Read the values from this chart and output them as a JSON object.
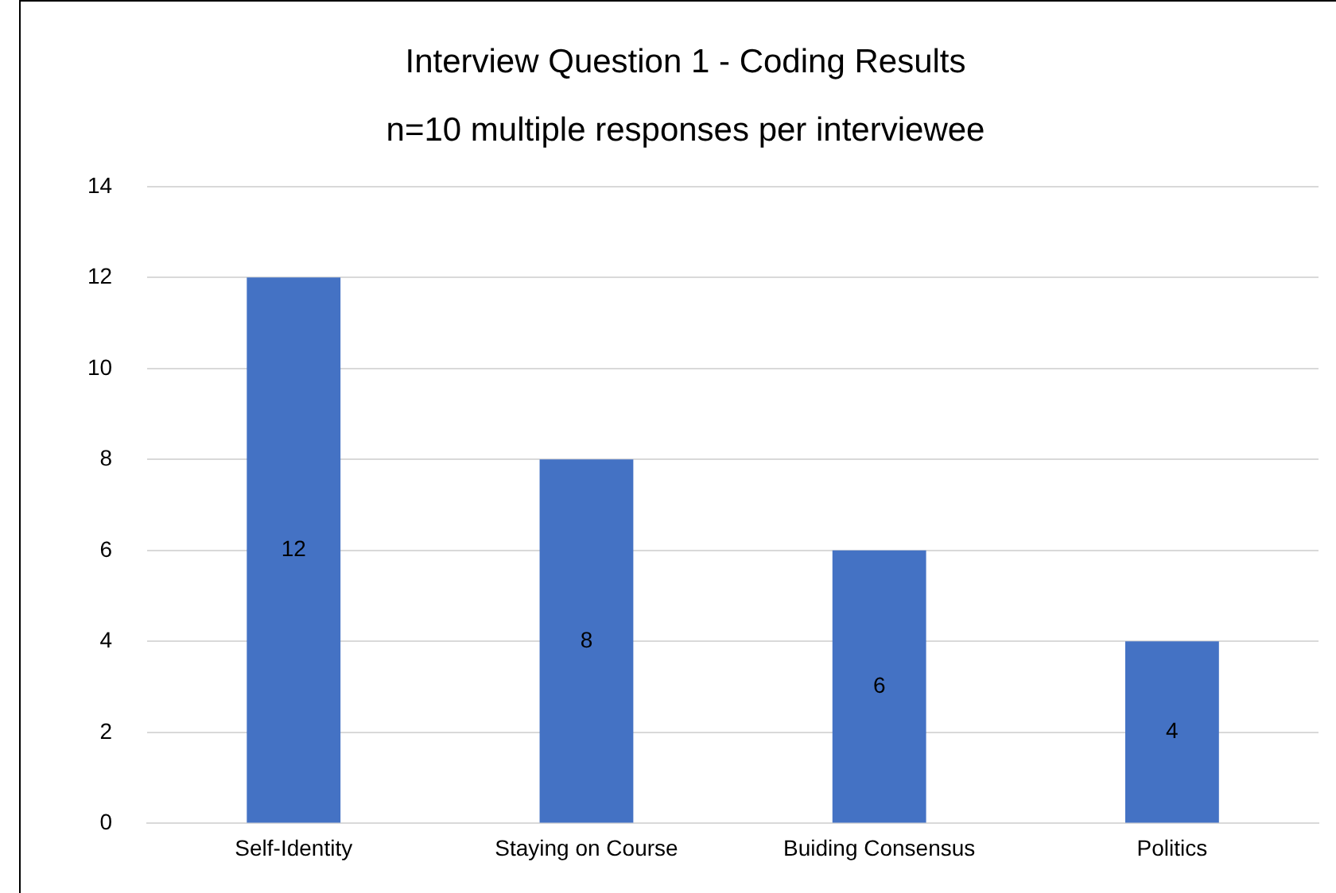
{
  "chart_data": {
    "type": "bar",
    "title": "Interview Question 1 - Coding Results",
    "subtitle": "n=10 multiple responses per interviewee",
    "categories": [
      "Self-Identity",
      "Staying on Course",
      "Buiding Consensus",
      "Politics"
    ],
    "values": [
      12,
      8,
      6,
      4
    ],
    "color": "#4472c4",
    "ylim": [
      0,
      14
    ],
    "yticks": [
      0,
      2,
      4,
      6,
      8,
      10,
      12,
      14
    ],
    "grid": "y",
    "data_labels": true
  }
}
